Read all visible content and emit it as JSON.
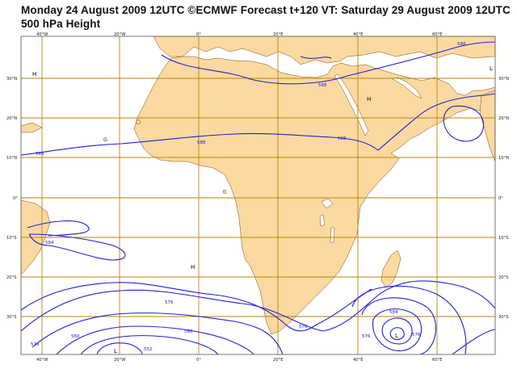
{
  "header": {
    "title_line1": "Monday 24 August 2009 12UTC ©ECMWF Forecast t+120 VT: Saturday 29 August 2009 12UTC",
    "title_line2": "500 hPa Height"
  },
  "map": {
    "colors": {
      "land": "#fcd9a0",
      "sea": "#ffffff",
      "grid": "#b8860b",
      "contour": "#1f1fd8",
      "coast": "#7a4a10",
      "frame": "#555555"
    },
    "lon_ticks_top": [
      "40°W",
      "20°W",
      "0°",
      "20°E",
      "40°E",
      "60°E"
    ],
    "lon_ticks_bottom": [
      "40°W",
      "20°W",
      "0°",
      "20°E",
      "40°E",
      "60°E"
    ],
    "lat_ticks_left": [
      "30°N",
      "20°N",
      "10°N",
      "0°",
      "10°S",
      "20°S",
      "30°S"
    ],
    "lat_ticks_right": [
      "30°N",
      "20°N",
      "10°N",
      "0°",
      "10°S",
      "20°S",
      "30°S"
    ],
    "pressure_centres": [
      {
        "label": "H",
        "kind": "high"
      },
      {
        "label": "H",
        "kind": "high"
      },
      {
        "label": "L",
        "kind": "low"
      },
      {
        "label": "H",
        "kind": "high"
      },
      {
        "label": "L",
        "kind": "low"
      },
      {
        "label": "L",
        "kind": "low"
      }
    ],
    "contour_labels": [
      "588",
      "588",
      "588",
      "588",
      "588",
      "584",
      "576",
      "568",
      "560",
      "552",
      "576",
      "584",
      "576",
      "576",
      "576"
    ]
  }
}
